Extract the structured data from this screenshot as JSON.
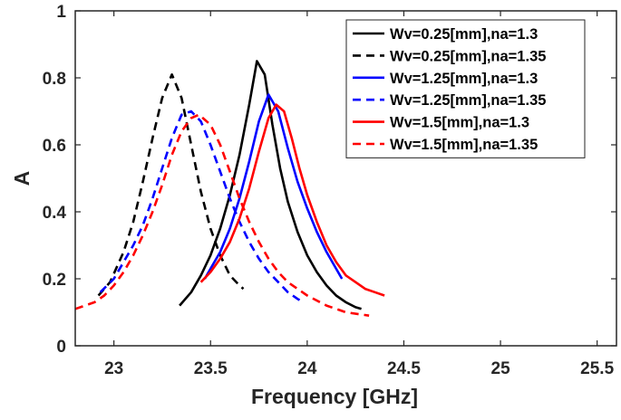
{
  "chart_data": {
    "type": "line",
    "title": "",
    "xlabel": "Frequency [GHz]",
    "ylabel": "A",
    "xlim": [
      22.8,
      25.6
    ],
    "ylim": [
      0,
      1
    ],
    "xticks": [
      "23",
      "23.5",
      "24",
      "24.5",
      "25",
      "25.5"
    ],
    "xtick_values": [
      23,
      23.5,
      24,
      24.5,
      25,
      25.5
    ],
    "yticks": [
      "0",
      "0.2",
      "0.4",
      "0.6",
      "0.8",
      "1"
    ],
    "ytick_values": [
      0,
      0.2,
      0.4,
      0.6,
      0.8,
      1
    ],
    "grid": false,
    "legend_position": "top-right",
    "series": [
      {
        "name": "Wv=0.25[mm],na=1.3",
        "color": "#000000",
        "style": "solid",
        "x": [
          23.34,
          23.4,
          23.45,
          23.5,
          23.55,
          23.6,
          23.65,
          23.7,
          23.74,
          23.78,
          23.82,
          23.86,
          23.9,
          23.95,
          24.0,
          24.05,
          24.1,
          24.15,
          24.2,
          24.25,
          24.28
        ],
        "y": [
          0.12,
          0.16,
          0.21,
          0.27,
          0.35,
          0.45,
          0.57,
          0.72,
          0.85,
          0.81,
          0.66,
          0.53,
          0.43,
          0.34,
          0.27,
          0.22,
          0.18,
          0.15,
          0.13,
          0.115,
          0.11
        ]
      },
      {
        "name": "Wv=0.25[mm],na=1.35",
        "color": "#000000",
        "style": "dashed",
        "x": [
          22.92,
          22.98,
          23.05,
          23.1,
          23.15,
          23.2,
          23.25,
          23.3,
          23.35,
          23.4,
          23.45,
          23.5,
          23.55,
          23.6,
          23.65,
          23.67
        ],
        "y": [
          0.15,
          0.19,
          0.28,
          0.37,
          0.49,
          0.62,
          0.74,
          0.81,
          0.74,
          0.6,
          0.46,
          0.35,
          0.27,
          0.21,
          0.18,
          0.17
        ]
      },
      {
        "name": "Wv=1.25[mm],na=1.3",
        "color": "#0000ff",
        "style": "solid",
        "x": [
          23.47,
          23.5,
          23.55,
          23.6,
          23.65,
          23.7,
          23.75,
          23.8,
          23.85,
          23.9,
          23.95,
          24.0,
          24.05,
          24.1,
          24.15,
          24.18
        ],
        "y": [
          0.2,
          0.23,
          0.28,
          0.35,
          0.44,
          0.55,
          0.67,
          0.75,
          0.7,
          0.59,
          0.49,
          0.41,
          0.34,
          0.28,
          0.23,
          0.2
        ]
      },
      {
        "name": "Wv=1.25[mm],na=1.35",
        "color": "#0000ff",
        "style": "dashed",
        "x": [
          22.93,
          23.0,
          23.05,
          23.1,
          23.15,
          23.2,
          23.25,
          23.3,
          23.35,
          23.4,
          23.45,
          23.5,
          23.55,
          23.6,
          23.65,
          23.7,
          23.75,
          23.8,
          23.85,
          23.9,
          23.95,
          23.98
        ],
        "y": [
          0.16,
          0.2,
          0.25,
          0.3,
          0.36,
          0.44,
          0.53,
          0.62,
          0.69,
          0.7,
          0.67,
          0.6,
          0.52,
          0.44,
          0.37,
          0.31,
          0.26,
          0.22,
          0.19,
          0.16,
          0.14,
          0.13
        ]
      },
      {
        "name": "Wv=1.5[mm],na=1.3",
        "color": "#ff0000",
        "style": "solid",
        "x": [
          23.45,
          23.5,
          23.55,
          23.6,
          23.65,
          23.7,
          23.75,
          23.8,
          23.84,
          23.88,
          23.92,
          23.96,
          24.0,
          24.05,
          24.1,
          24.15,
          24.2,
          24.25,
          24.3,
          24.35,
          24.4
        ],
        "y": [
          0.19,
          0.22,
          0.26,
          0.31,
          0.38,
          0.47,
          0.58,
          0.68,
          0.72,
          0.7,
          0.62,
          0.53,
          0.45,
          0.37,
          0.3,
          0.25,
          0.21,
          0.19,
          0.17,
          0.16,
          0.15
        ]
      },
      {
        "name": "Wv=1.5[mm],na=1.35",
        "color": "#ff0000",
        "style": "dashed",
        "x": [
          22.8,
          22.85,
          22.9,
          22.95,
          23.0,
          23.05,
          23.1,
          23.15,
          23.2,
          23.25,
          23.3,
          23.35,
          23.4,
          23.44,
          23.5,
          23.55,
          23.6,
          23.65,
          23.7,
          23.75,
          23.8,
          23.85,
          23.9,
          23.95,
          24.0,
          24.1,
          24.2,
          24.32
        ],
        "y": [
          0.11,
          0.12,
          0.13,
          0.15,
          0.18,
          0.22,
          0.27,
          0.33,
          0.4,
          0.48,
          0.57,
          0.64,
          0.68,
          0.69,
          0.66,
          0.6,
          0.52,
          0.44,
          0.37,
          0.31,
          0.26,
          0.22,
          0.19,
          0.17,
          0.15,
          0.12,
          0.1,
          0.09
        ]
      }
    ]
  }
}
